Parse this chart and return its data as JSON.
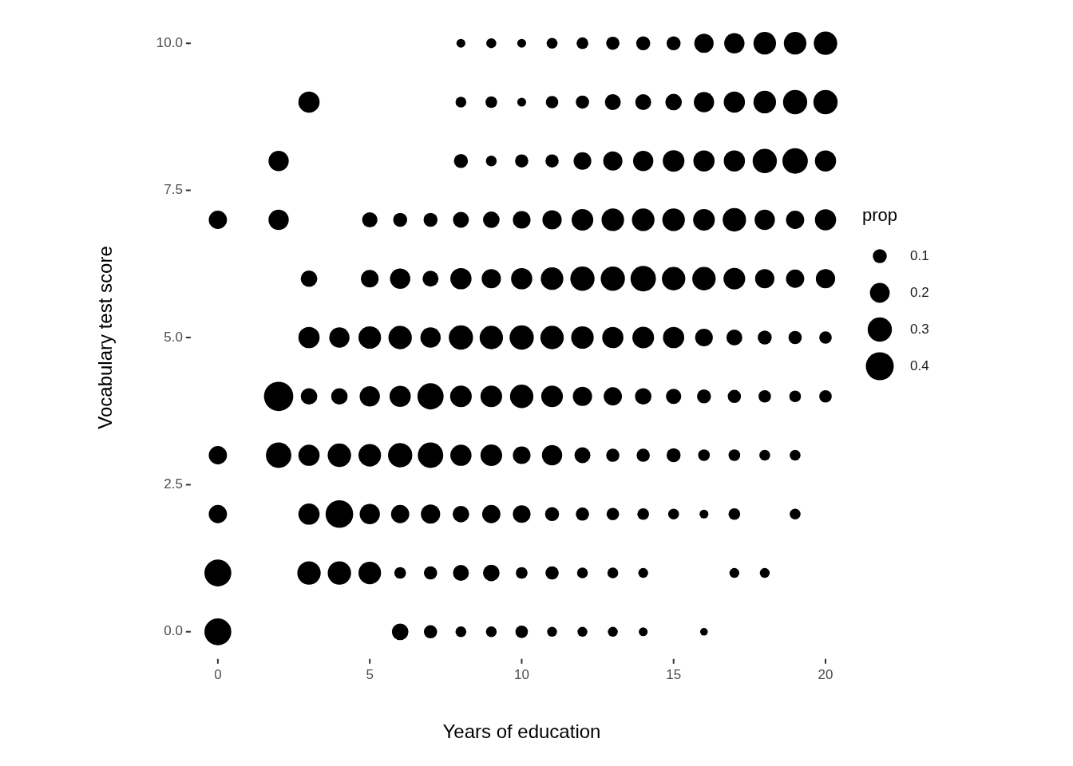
{
  "chart_data": {
    "type": "bubble",
    "xlabel": "Years of education",
    "ylabel": "Vocabulary test score",
    "legend_title": "prop",
    "grid": false,
    "marker": "circle",
    "color": "#000000",
    "xlim": [
      0,
      20
    ],
    "xticks": [
      0,
      5,
      10,
      15,
      20
    ],
    "ylim": [
      0,
      10
    ],
    "yticks": [
      {
        "value": 0,
        "label": "0.0"
      },
      {
        "value": 2.5,
        "label": "2.5"
      },
      {
        "value": 5,
        "label": "5.0"
      },
      {
        "value": 7.5,
        "label": "7.5"
      },
      {
        "value": 10,
        "label": "10.0"
      }
    ],
    "size_legend": [
      0.1,
      0.2,
      0.3,
      0.4
    ],
    "x": [
      8,
      9,
      10,
      11,
      12,
      13,
      14,
      15,
      16,
      17,
      18,
      19,
      20,
      3,
      8,
      9,
      10,
      11,
      12,
      13,
      14,
      15,
      16,
      17,
      18,
      19,
      20,
      2,
      8,
      9,
      10,
      11,
      12,
      13,
      14,
      15,
      16,
      17,
      18,
      19,
      20,
      0,
      2,
      5,
      6,
      7,
      8,
      9,
      10,
      11,
      12,
      13,
      14,
      15,
      16,
      17,
      18,
      19,
      20,
      3,
      5,
      6,
      7,
      8,
      9,
      10,
      11,
      12,
      13,
      14,
      15,
      16,
      17,
      18,
      19,
      20,
      3,
      4,
      5,
      6,
      7,
      8,
      9,
      10,
      11,
      12,
      13,
      14,
      15,
      16,
      17,
      18,
      19,
      20,
      2,
      3,
      4,
      5,
      6,
      7,
      8,
      9,
      10,
      11,
      12,
      13,
      14,
      15,
      16,
      17,
      18,
      19,
      20,
      0,
      2,
      3,
      4,
      5,
      6,
      7,
      8,
      9,
      10,
      11,
      12,
      13,
      14,
      15,
      16,
      17,
      18,
      19,
      0,
      3,
      4,
      5,
      6,
      7,
      8,
      9,
      10,
      11,
      12,
      13,
      14,
      15,
      16,
      17,
      19,
      0,
      3,
      4,
      5,
      6,
      7,
      8,
      9,
      10,
      11,
      12,
      13,
      14,
      17,
      18,
      0,
      6,
      7,
      8,
      9,
      10,
      11,
      12,
      13,
      14,
      16
    ],
    "values": [
      10,
      10,
      10,
      10,
      10,
      10,
      10,
      10,
      10,
      10,
      10,
      10,
      10,
      9,
      9,
      9,
      9,
      9,
      9,
      9,
      9,
      9,
      9,
      9,
      9,
      9,
      9,
      8,
      8,
      8,
      8,
      8,
      8,
      8,
      8,
      8,
      8,
      8,
      8,
      8,
      8,
      7,
      7,
      7,
      7,
      7,
      7,
      7,
      7,
      7,
      7,
      7,
      7,
      7,
      7,
      7,
      7,
      7,
      7,
      6,
      6,
      6,
      6,
      6,
      6,
      6,
      6,
      6,
      6,
      6,
      6,
      6,
      6,
      6,
      6,
      6,
      5,
      5,
      5,
      5,
      5,
      5,
      5,
      5,
      5,
      5,
      5,
      5,
      5,
      5,
      5,
      5,
      5,
      5,
      4,
      4,
      4,
      4,
      4,
      4,
      4,
      4,
      4,
      4,
      4,
      4,
      4,
      4,
      4,
      4,
      4,
      4,
      4,
      3,
      3,
      3,
      3,
      3,
      3,
      3,
      3,
      3,
      3,
      3,
      3,
      3,
      3,
      3,
      3,
      3,
      3,
      3,
      2,
      2,
      2,
      2,
      2,
      2,
      2,
      2,
      2,
      2,
      2,
      2,
      2,
      2,
      2,
      2,
      2,
      1,
      1,
      1,
      1,
      1,
      1,
      1,
      1,
      1,
      1,
      1,
      1,
      1,
      1,
      1,
      0,
      0,
      0,
      0,
      0,
      0,
      0,
      0,
      0,
      0,
      0
    ],
    "sizes": [
      0.04,
      0.05,
      0.04,
      0.06,
      0.07,
      0.09,
      0.1,
      0.1,
      0.19,
      0.21,
      0.26,
      0.26,
      0.28,
      0.23,
      0.06,
      0.07,
      0.04,
      0.08,
      0.09,
      0.13,
      0.13,
      0.14,
      0.21,
      0.23,
      0.26,
      0.3,
      0.3,
      0.21,
      0.1,
      0.06,
      0.09,
      0.09,
      0.16,
      0.19,
      0.21,
      0.24,
      0.23,
      0.23,
      0.3,
      0.33,
      0.23,
      0.17,
      0.21,
      0.12,
      0.1,
      0.1,
      0.13,
      0.14,
      0.16,
      0.19,
      0.24,
      0.26,
      0.26,
      0.26,
      0.24,
      0.28,
      0.21,
      0.17,
      0.23,
      0.14,
      0.16,
      0.21,
      0.13,
      0.23,
      0.19,
      0.23,
      0.26,
      0.3,
      0.3,
      0.33,
      0.28,
      0.28,
      0.24,
      0.19,
      0.17,
      0.19,
      0.23,
      0.21,
      0.26,
      0.28,
      0.21,
      0.3,
      0.28,
      0.3,
      0.28,
      0.26,
      0.23,
      0.24,
      0.23,
      0.16,
      0.13,
      0.1,
      0.09,
      0.08,
      0.44,
      0.14,
      0.14,
      0.21,
      0.23,
      0.35,
      0.24,
      0.24,
      0.28,
      0.24,
      0.19,
      0.17,
      0.14,
      0.12,
      0.1,
      0.09,
      0.08,
      0.07,
      0.08,
      0.17,
      0.33,
      0.23,
      0.28,
      0.26,
      0.3,
      0.33,
      0.23,
      0.24,
      0.16,
      0.21,
      0.13,
      0.09,
      0.09,
      0.1,
      0.07,
      0.07,
      0.06,
      0.06,
      0.17,
      0.23,
      0.39,
      0.21,
      0.17,
      0.19,
      0.14,
      0.17,
      0.16,
      0.1,
      0.09,
      0.08,
      0.07,
      0.06,
      0.04,
      0.07,
      0.06,
      0.37,
      0.28,
      0.28,
      0.26,
      0.07,
      0.09,
      0.13,
      0.14,
      0.07,
      0.09,
      0.06,
      0.06,
      0.05,
      0.05,
      0.05,
      0.37,
      0.14,
      0.09,
      0.06,
      0.06,
      0.08,
      0.05,
      0.05,
      0.05,
      0.04,
      0.03
    ]
  }
}
